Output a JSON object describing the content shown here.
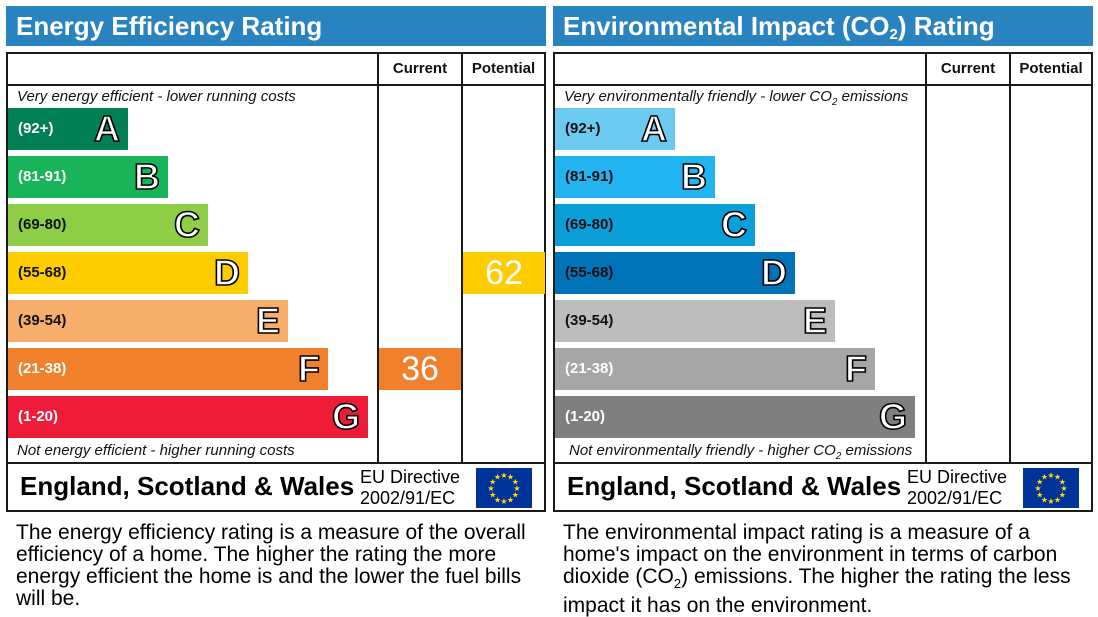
{
  "colors": {
    "header": "#2a83c1",
    "energy_bands": [
      "#008054",
      "#19b459",
      "#8dce46",
      "#ffcc00",
      "#f7ae6b",
      "#f1802c",
      "#ee1c39"
    ],
    "environment_bands": [
      "#6ccaf0",
      "#22b4f0",
      "#0a9fd8",
      "#0073b8",
      "#bdbdbd",
      "#a6a6a6",
      "#7f7f7f"
    ],
    "flag": "#003399",
    "flag_stars": "#ffdd00"
  },
  "energy": {
    "title": "Energy Efficiency Rating",
    "col_current": "Current",
    "col_potential": "Potential",
    "top_note": "Very energy efficient - lower running costs",
    "bottom_note": "Not energy efficient - higher running costs",
    "region": "England, Scotland & Wales",
    "directive_line1": "EU Directive",
    "directive_line2": "2002/91/EC",
    "description": "The energy efficiency rating is a measure of the overall efficiency of a home. The higher the rating the more energy efficient the home is and the lower the fuel bills will be.",
    "current_value": "36",
    "potential_value": "62"
  },
  "environment": {
    "title_pre": "Environmental Impact (CO",
    "title_sub": "2",
    "title_post": ") Rating",
    "col_current": "Current",
    "col_potential": "Potential",
    "top_note_pre": "Very environmentally friendly - lower CO",
    "top_note_sub": "2",
    "top_note_post": " emissions",
    "bottom_note_pre": "Not environmentally friendly - higher CO",
    "bottom_note_sub": "2",
    "bottom_note_post": " emissions",
    "region": "England, Scotland & Wales",
    "directive_line1": "EU Directive",
    "directive_line2": "2002/91/EC",
    "description_pre": "The environmental impact rating is a measure of a home's impact on the environment in terms of carbon dioxide (CO",
    "description_sub": "2",
    "description_post": ") emissions. The higher the rating the less impact it has on the environment."
  },
  "chart_data": [
    {
      "type": "bar",
      "title": "Energy Efficiency Rating",
      "categories": [
        "A",
        "B",
        "C",
        "D",
        "E",
        "F",
        "G"
      ],
      "ranges": [
        "(92+)",
        "(81-91)",
        "(69-80)",
        "(55-68)",
        "(39-54)",
        "(21-38)",
        "(1-20)"
      ],
      "current": {
        "value": 36,
        "band": "F"
      },
      "potential": {
        "value": 62,
        "band": "D"
      }
    },
    {
      "type": "bar",
      "title": "Environmental Impact (CO2) Rating",
      "categories": [
        "A",
        "B",
        "C",
        "D",
        "E",
        "F",
        "G"
      ],
      "ranges": [
        "(92+)",
        "(81-91)",
        "(69-80)",
        "(55-68)",
        "(39-54)",
        "(21-38)",
        "(1-20)"
      ]
    }
  ]
}
